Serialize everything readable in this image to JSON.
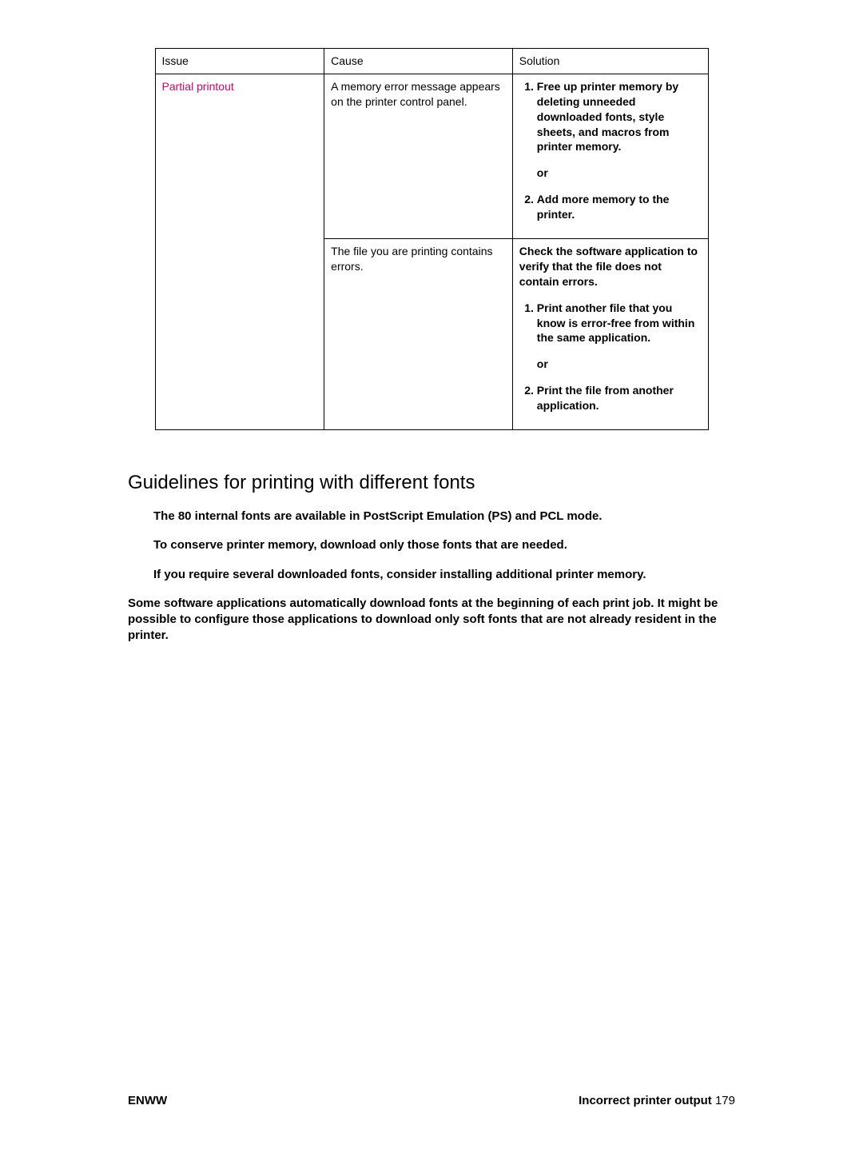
{
  "table": {
    "headers": {
      "issue": "Issue",
      "cause": "Cause",
      "solution": "Solution"
    },
    "issue": "Partial printout",
    "row1": {
      "cause": "A memory error message appears on the printer control panel.",
      "sol_item1": "Free up printer memory by deleting unneeded downloaded fonts, style sheets, and macros from printer memory.",
      "or": "or",
      "sol_item2": "Add more memory to the printer."
    },
    "row2": {
      "cause": "The file you are printing contains errors.",
      "lead": "Check the software application to verify that the file does not contain errors.",
      "sol_item1": "Print another file that you know is error-free from within the same application.",
      "or": "or",
      "sol_item2": "Print the file from another application."
    }
  },
  "heading": "Guidelines for printing with different fonts",
  "bullets": [
    "The 80 internal fonts are available in PostScript Emulation (PS) and PCL mode.",
    "To conserve printer memory, download only those fonts that are needed.",
    "If you require several downloaded fonts, consider installing additional printer memory."
  ],
  "paragraph": "Some software applications automatically download fonts at the beginning of each print job. It might be possible to configure those applications to download only soft fonts that are not already resident in the printer.",
  "footer": {
    "left": "ENWW",
    "right_title": "Incorrect printer output",
    "right_page": "179"
  }
}
